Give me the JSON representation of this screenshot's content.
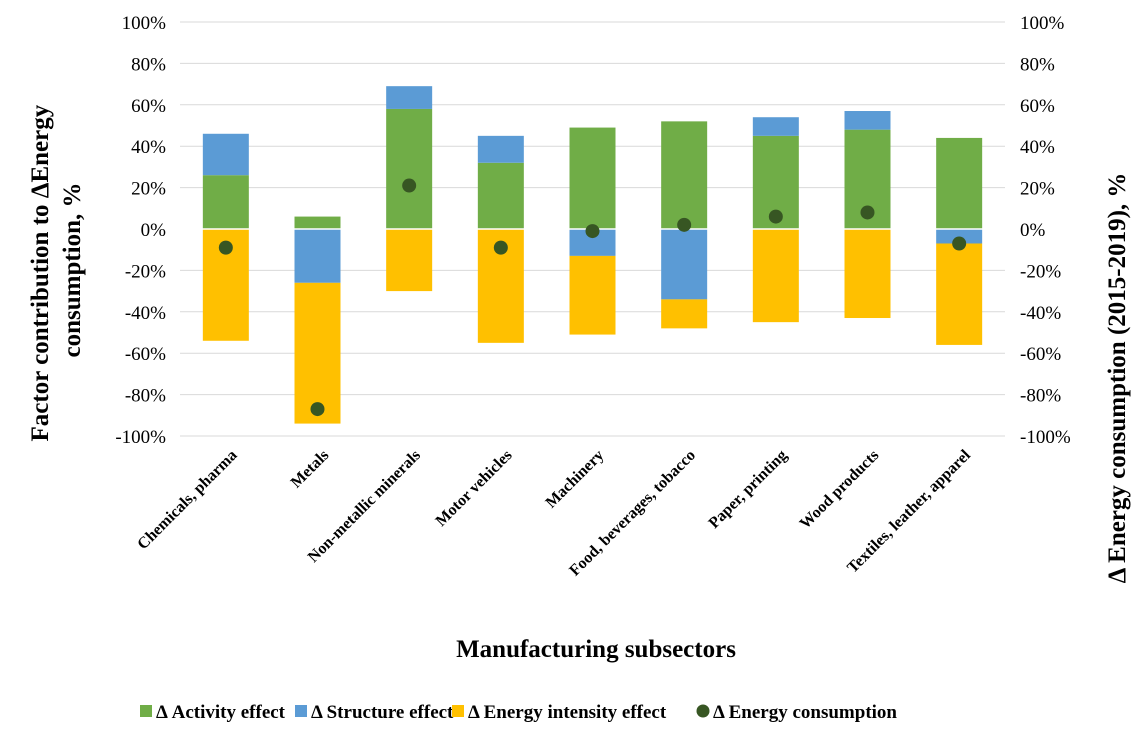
{
  "chart_data": {
    "type": "bar",
    "stacked": true,
    "categories": [
      "Chemicals, pharma",
      "Metals",
      "Non-metallic minerals",
      "Motor vehicles",
      "Machinery",
      "Food, beverages, tobacco",
      "Paper, printing",
      "Wood products",
      "Textiles, leather, apparel"
    ],
    "series": [
      {
        "name": "Δ Activity effect",
        "kind": "bar",
        "color": "#70AD47",
        "values": [
          26,
          6,
          58,
          32,
          49,
          52,
          45,
          48,
          44
        ]
      },
      {
        "name": "Δ Structure effect",
        "kind": "bar",
        "color": "#5B9BD5",
        "values": [
          20,
          -26,
          11,
          13,
          -13,
          -34,
          9,
          9,
          -7
        ]
      },
      {
        "name": "Δ Energy intensity effect",
        "kind": "bar",
        "color": "#FFC000",
        "values": [
          -54,
          -68,
          -30,
          -55,
          -38,
          -14,
          -45,
          -43,
          -49
        ]
      },
      {
        "name": "Δ Energy consumption",
        "kind": "marker",
        "color": "#375623",
        "values": [
          -9,
          -87,
          21,
          -9,
          -1,
          2,
          6,
          8,
          -7
        ]
      }
    ],
    "xlabel": "Manufacturing subsectors",
    "ylabel": "Factor contribution to ΔEnergy consumption, %",
    "ylabel_lines": [
      "Factor contribution to ΔEnergy",
      "consumption, %"
    ],
    "y2label": "Δ Energy consumption (2015-2019), %",
    "ylim": [
      -100,
      100
    ],
    "y2lim": [
      -100,
      100
    ],
    "yticks": [
      "100%",
      "80%",
      "60%",
      "40%",
      "20%",
      "0%",
      "-20%",
      "-40%",
      "-60%",
      "-80%",
      "-100%"
    ],
    "grid": true,
    "legend_position": "bottom"
  }
}
